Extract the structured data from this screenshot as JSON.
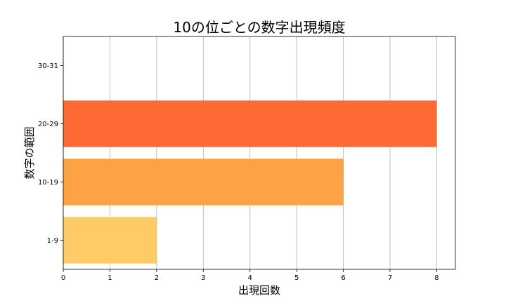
{
  "chart_data": {
    "type": "bar",
    "orientation": "horizontal",
    "title": "10の位ごとの数字出現頻度",
    "xlabel": "出現回数",
    "ylabel": "数字の範囲",
    "categories": [
      "1-9",
      "10-19",
      "20-29",
      "30-31"
    ],
    "values": [
      2,
      6,
      8,
      0
    ],
    "colors": [
      "#fecb66",
      "#fda245",
      "#fe6a34",
      "#fe6a34"
    ],
    "xlim": [
      0,
      8.4
    ],
    "xticks": [
      0,
      1,
      2,
      3,
      4,
      5,
      6,
      7,
      8
    ],
    "grid": "x"
  }
}
